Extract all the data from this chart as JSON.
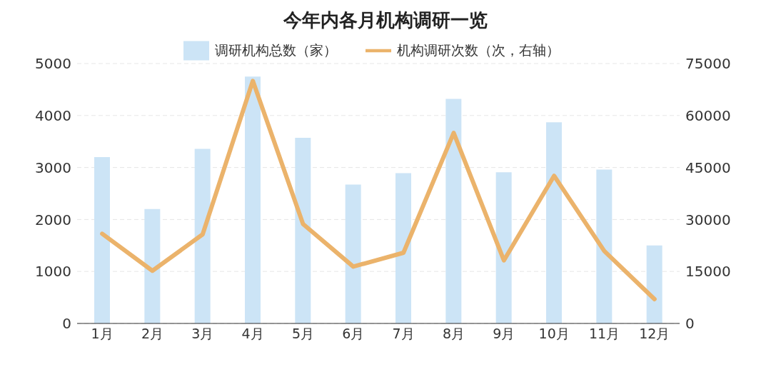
{
  "chart_data": {
    "type": "bar",
    "title": "今年内各月机构调研一览",
    "categories": [
      "1月",
      "2月",
      "3月",
      "4月",
      "5月",
      "6月",
      "7月",
      "8月",
      "9月",
      "10月",
      "11月",
      "12月"
    ],
    "series": [
      {
        "name": "调研机构总数（家）",
        "color": "#cce4f6",
        "values": [
          3200,
          2200,
          3360,
          4750,
          3570,
          2670,
          2890,
          4320,
          2910,
          3870,
          2960,
          1500
        ]
      },
      {
        "name": "机构调研次数（次，右轴）",
        "type": "line",
        "axis": "y2",
        "color": "#ebb36b",
        "values": [
          25900,
          15200,
          25700,
          70000,
          28700,
          16400,
          20400,
          55000,
          18200,
          42600,
          20900,
          7000
        ]
      }
    ],
    "ylim": [
      0,
      5000
    ],
    "yticks": [
      0,
      1000,
      2000,
      3000,
      4000,
      5000
    ],
    "y2lim": [
      0,
      75000
    ],
    "y2ticks": [
      0,
      15000,
      30000,
      45000,
      60000,
      75000
    ],
    "grid": "y",
    "legend": "top",
    "marker": "none"
  }
}
